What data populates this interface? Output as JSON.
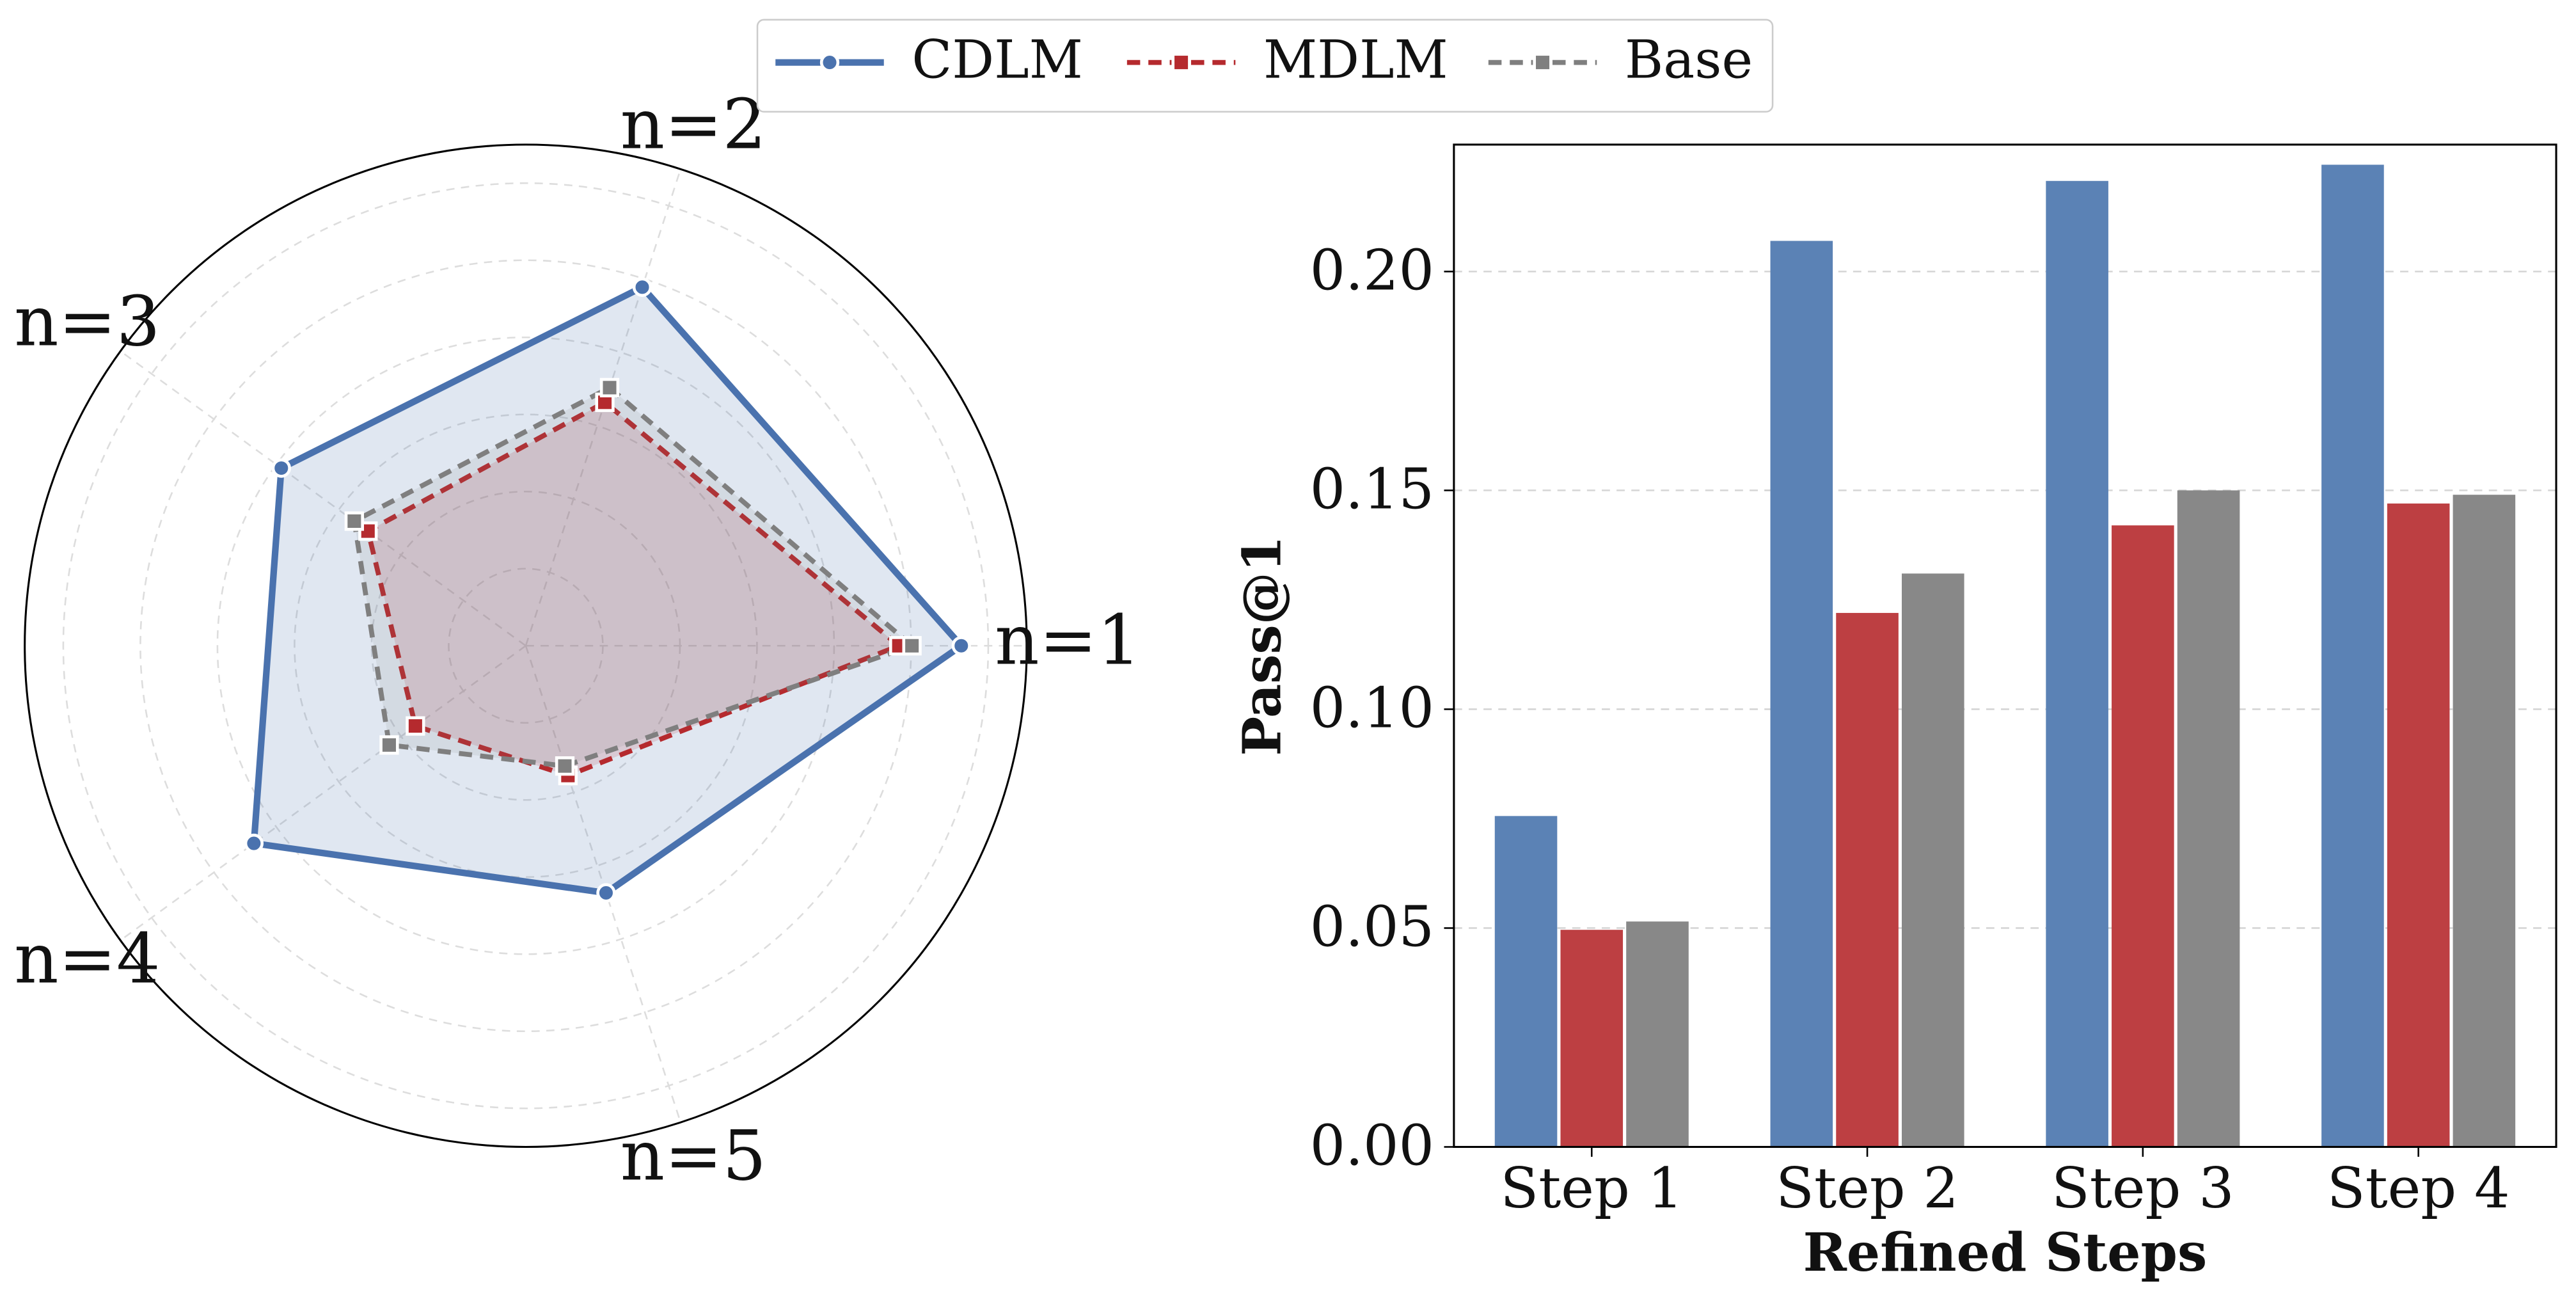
{
  "chart_data": [
    {
      "type": "radar",
      "categories": [
        "n=1",
        "n=2",
        "n=3",
        "n=4",
        "n=5"
      ],
      "rlim": [
        0,
        0.65
      ],
      "rticks": [
        0.1,
        0.2,
        0.3,
        0.4,
        0.5,
        0.6
      ],
      "grid": true,
      "series": [
        {
          "name": "CDLM",
          "color": "#4a72ae",
          "values": [
            0.565,
            0.489,
            0.392,
            0.436,
            0.337
          ]
        },
        {
          "name": "MDLM",
          "color": "#b52a2e",
          "values": [
            0.484,
            0.332,
            0.253,
            0.177,
            0.177
          ]
        },
        {
          "name": "Base",
          "color": "#7f7f7f",
          "values": [
            0.501,
            0.352,
            0.275,
            0.219,
            0.164
          ]
        }
      ]
    },
    {
      "type": "bar",
      "x_label": "Refined Steps",
      "y_label": "Pass@1",
      "categories": [
        "Step 1",
        "Step 2",
        "Step 3",
        "Step 4"
      ],
      "ylim": [
        0,
        0.229
      ],
      "yticks": [
        {
          "value": 0,
          "label": "0.00"
        },
        {
          "value": 0.05,
          "label": "0.05"
        },
        {
          "value": 0.1,
          "label": "0.10"
        },
        {
          "value": 0.15,
          "label": "0.15"
        },
        {
          "value": 0.2,
          "label": "0.20"
        }
      ],
      "grid": true,
      "series": [
        {
          "name": "CDLM",
          "color": "#5b82b5",
          "values": [
            0.0756,
            0.207,
            0.2207,
            0.2244
          ]
        },
        {
          "name": "MDLM",
          "color": "#bd3f42",
          "values": [
            0.0496,
            0.122,
            0.142,
            0.147
          ]
        },
        {
          "name": "Base",
          "color": "#888888",
          "values": [
            0.0515,
            0.131,
            0.15,
            0.149
          ]
        }
      ]
    }
  ]
}
